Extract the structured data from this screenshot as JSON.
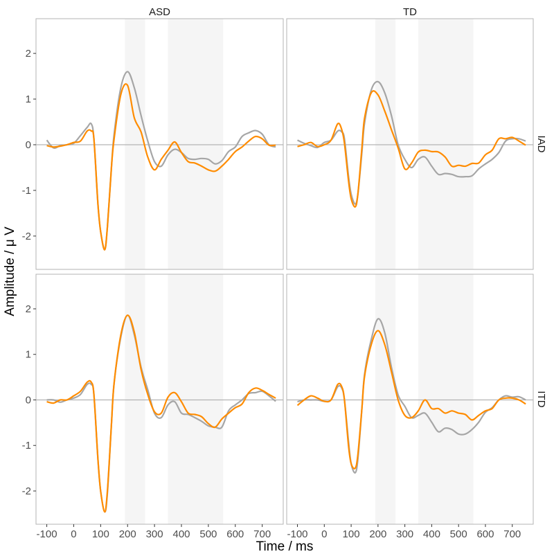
{
  "chart_data": {
    "type": "line",
    "xlabel": "Time / ms",
    "ylabel": "Amplitude / μ V",
    "xlim": [
      -140,
      778
    ],
    "ylim": [
      -2.73,
      2.76
    ],
    "x_ticks": [
      -100,
      0,
      100,
      200,
      300,
      400,
      500,
      600,
      700
    ],
    "y_ticks": [
      -2,
      -1,
      0,
      1,
      2
    ],
    "grid": false,
    "reference_line_y": 0,
    "shaded_intervals_ms": [
      [
        190,
        265
      ],
      [
        350,
        555
      ]
    ],
    "colors": {
      "series_gray": "#a6a6a6",
      "series_orange": "#ff8c00",
      "shade": "#f5f5f5",
      "zero_line": "#b3b3b3",
      "border": "#b3b3b3"
    },
    "col_facets": [
      "ASD",
      "TD"
    ],
    "row_facets": [
      "IAD",
      "ITD"
    ],
    "x": [
      -100,
      -75,
      -50,
      -25,
      0,
      25,
      50,
      65,
      75,
      90,
      100,
      115,
      125,
      140,
      150,
      175,
      200,
      225,
      250,
      275,
      300,
      325,
      350,
      375,
      400,
      425,
      450,
      475,
      500,
      525,
      550,
      575,
      600,
      625,
      650,
      675,
      700,
      725,
      750
    ],
    "panels": [
      {
        "col": "ASD",
        "row": "IAD",
        "gray": [
          0.1,
          -0.07,
          -0.02,
          0,
          0.03,
          0.2,
          0.38,
          0.46,
          0.13,
          -1.3,
          -1.9,
          -2.3,
          -1.8,
          -0.5,
          0.23,
          1.25,
          1.6,
          1.25,
          0.64,
          0.08,
          -0.37,
          -0.47,
          -0.22,
          -0.1,
          -0.17,
          -0.3,
          -0.32,
          -0.3,
          -0.32,
          -0.42,
          -0.35,
          -0.15,
          -0.05,
          0.18,
          0.26,
          0.31,
          0.23,
          0,
          -0.05
        ],
        "orange": [
          -0.02,
          -0.05,
          -0.03,
          0,
          0.05,
          0.08,
          0.3,
          0.3,
          0.13,
          -1.3,
          -1.9,
          -2.3,
          -1.8,
          -0.5,
          0.13,
          1.1,
          1.3,
          0.59,
          0.28,
          -0.27,
          -0.55,
          -0.32,
          -0.12,
          0.06,
          -0.17,
          -0.37,
          -0.4,
          -0.47,
          -0.55,
          -0.58,
          -0.47,
          -0.32,
          -0.15,
          -0.05,
          0.08,
          0.18,
          0.13,
          -0.01,
          -0.01
        ]
      },
      {
        "col": "TD",
        "row": "IAD",
        "gray": [
          0.1,
          0.03,
          -0.02,
          -0.06,
          0.05,
          0.1,
          0.3,
          0.28,
          0.13,
          -0.68,
          -1.08,
          -1.3,
          -1.08,
          -0.17,
          0.48,
          1.2,
          1.38,
          1.14,
          0.64,
          0,
          -0.32,
          -0.5,
          -0.32,
          -0.27,
          -0.47,
          -0.65,
          -0.63,
          -0.65,
          -0.7,
          -0.7,
          -0.68,
          -0.53,
          -0.42,
          -0.32,
          -0.17,
          0.08,
          0.13,
          0.13,
          0.08
        ],
        "orange": [
          -0.04,
          0,
          0.05,
          -0.04,
          0,
          0.1,
          0.46,
          0.33,
          0.03,
          -0.78,
          -1.18,
          -1.36,
          -1.08,
          -0.07,
          0.59,
          1.14,
          1.09,
          0.74,
          0.33,
          -0.07,
          -0.53,
          -0.4,
          -0.16,
          -0.12,
          -0.15,
          -0.16,
          -0.27,
          -0.47,
          -0.45,
          -0.47,
          -0.41,
          -0.4,
          -0.22,
          -0.12,
          0.13,
          0.13,
          0.16,
          0.08,
          -0.01
        ]
      },
      {
        "col": "ASD",
        "row": "ITD",
        "gray": [
          0,
          0,
          -0.05,
          0,
          0.04,
          0.12,
          0.34,
          0.34,
          0.12,
          -1.3,
          -2.0,
          -2.46,
          -2.05,
          -0.54,
          0.37,
          1.38,
          1.86,
          1.43,
          0.72,
          0.22,
          -0.29,
          -0.39,
          -0.11,
          -0.04,
          -0.29,
          -0.32,
          -0.39,
          -0.47,
          -0.57,
          -0.6,
          -0.6,
          -0.24,
          -0.11,
          0,
          0.14,
          0.16,
          0.19,
          0.09,
          -0.03
        ],
        "orange": [
          -0.04,
          -0.07,
          0,
          0,
          0.09,
          0.19,
          0.39,
          0.39,
          0.12,
          -1.3,
          -2.0,
          -2.46,
          -2.0,
          -0.54,
          0.37,
          1.43,
          1.86,
          1.49,
          0.67,
          0.12,
          -0.26,
          -0.29,
          0.06,
          0.16,
          -0.04,
          -0.29,
          -0.32,
          -0.37,
          -0.52,
          -0.6,
          -0.42,
          -0.29,
          -0.17,
          -0.09,
          0.16,
          0.26,
          0.21,
          0.12,
          0.04
        ]
      },
      {
        "col": "TD",
        "row": "ITD",
        "gray": [
          -0.04,
          0,
          0,
          0,
          -0.03,
          0,
          0.29,
          0.26,
          0,
          -0.9,
          -1.4,
          -1.6,
          -1.3,
          -0.19,
          0.57,
          1.33,
          1.78,
          1.48,
          0.72,
          0.11,
          -0.14,
          -0.39,
          -0.34,
          -0.29,
          -0.49,
          -0.7,
          -0.62,
          -0.65,
          -0.75,
          -0.75,
          -0.65,
          -0.49,
          -0.27,
          -0.17,
          0,
          0.09,
          0.06,
          0.07,
          0
        ],
        "orange": [
          -0.12,
          0,
          0.09,
          0.04,
          -0.03,
          0,
          0.34,
          0.29,
          0,
          -1.0,
          -1.4,
          -1.5,
          -1.2,
          -0.19,
          0.52,
          1.22,
          1.52,
          1.22,
          0.62,
          0,
          -0.34,
          -0.39,
          -0.24,
          0,
          -0.19,
          -0.19,
          -0.29,
          -0.24,
          -0.29,
          -0.32,
          -0.44,
          -0.34,
          -0.24,
          -0.19,
          0,
          0.04,
          0.04,
          0,
          -0.09
        ]
      }
    ]
  }
}
